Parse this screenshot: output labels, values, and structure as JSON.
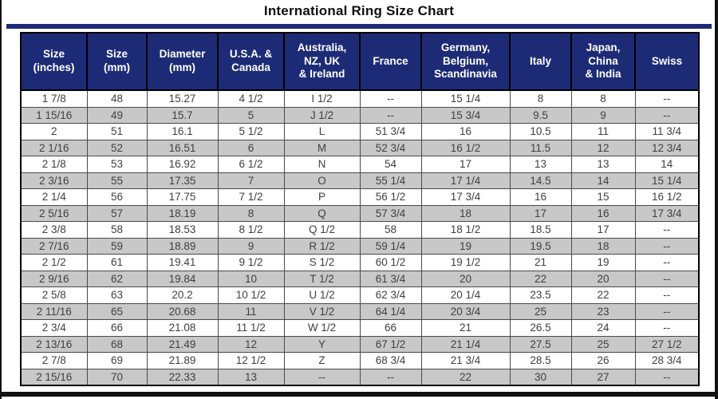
{
  "page": {
    "title": "International Ring Size Chart"
  },
  "colors": {
    "header_bg": "#1d2b76",
    "header_text": "#ffffff",
    "row_alt_bg": "#c8c8c8",
    "row_bg": "#ffffff",
    "cell_text": "#3f3f3f",
    "title_rule": "#1d2b76",
    "frame": "#121212"
  },
  "chart_data": {
    "type": "table",
    "title": "International Ring Size Chart",
    "columns": [
      "Size (inches)",
      "Size (mm)",
      "Diameter (mm)",
      "U.S.A. & Canada",
      "Australia, NZ, UK & Ireland",
      "France",
      "Germany, Belgium, Scandinavia",
      "Italy",
      "Japan, China & India",
      "Swiss"
    ],
    "header_display": [
      "Size\n(inches)",
      "Size\n(mm)",
      "Diameter\n(mm)",
      "U.S.A. &\nCanada",
      "Australia,\nNZ, UK\n& Ireland",
      "France",
      "Germany,\nBelgium,\nScandinavia",
      "Italy",
      "Japan,\nChina\n& India",
      "Swiss"
    ],
    "rows": [
      [
        "1 7/8",
        "48",
        "15.27",
        "4 1/2",
        "I 1/2",
        "--",
        "15 1/4",
        "8",
        "8",
        "--"
      ],
      [
        "1 15/16",
        "49",
        "15.7",
        "5",
        "J 1/2",
        "--",
        "15 3/4",
        "9.5",
        "9",
        "--"
      ],
      [
        "2",
        "51",
        "16.1",
        "5 1/2",
        "L",
        "51 3/4",
        "16",
        "10.5",
        "11",
        "11 3/4"
      ],
      [
        "2 1/16",
        "52",
        "16.51",
        "6",
        "M",
        "52 3/4",
        "16 1/2",
        "11.5",
        "12",
        "12 3/4"
      ],
      [
        "2 1/8",
        "53",
        "16.92",
        "6 1/2",
        "N",
        "54",
        "17",
        "13",
        "13",
        "14"
      ],
      [
        "2 3/16",
        "55",
        "17.35",
        "7",
        "O",
        "55 1/4",
        "17 1/4",
        "14.5",
        "14",
        "15 1/4"
      ],
      [
        "2 1/4",
        "56",
        "17.75",
        "7 1/2",
        "P",
        "56 1/2",
        "17 3/4",
        "16",
        "15",
        "16 1/2"
      ],
      [
        "2 5/16",
        "57",
        "18.19",
        "8",
        "Q",
        "57 3/4",
        "18",
        "17",
        "16",
        "17 3/4"
      ],
      [
        "2 3/8",
        "58",
        "18.53",
        "8 1/2",
        "Q 1/2",
        "58",
        "18 1/2",
        "18.5",
        "17",
        "--"
      ],
      [
        "2 7/16",
        "59",
        "18.89",
        "9",
        "R 1/2",
        "59 1/4",
        "19",
        "19.5",
        "18",
        "--"
      ],
      [
        "2 1/2",
        "61",
        "19.41",
        "9 1/2",
        "S 1/2",
        "60 1/2",
        "19 1/2",
        "21",
        "19",
        "--"
      ],
      [
        "2 9/16",
        "62",
        "19.84",
        "10",
        "T 1/2",
        "61 3/4",
        "20",
        "22",
        "20",
        "--"
      ],
      [
        "2 5/8",
        "63",
        "20.2",
        "10 1/2",
        "U 1/2",
        "62 3/4",
        "20 1/4",
        "23.5",
        "22",
        "--"
      ],
      [
        "2 11/16",
        "65",
        "20.68",
        "11",
        "V 1/2",
        "64 1/4",
        "20 3/4",
        "25",
        "23",
        "--"
      ],
      [
        "2 3/4",
        "66",
        "21.08",
        "11 1/2",
        "W 1/2",
        "66",
        "21",
        "26.5",
        "24",
        "--"
      ],
      [
        "2 13/16",
        "68",
        "21.49",
        "12",
        "Y",
        "67 1/2",
        "21 1/4",
        "27.5",
        "25",
        "27 1/2"
      ],
      [
        "2 7/8",
        "69",
        "21.89",
        "12 1/2",
        "Z",
        "68 3/4",
        "21 3/4",
        "28.5",
        "26",
        "28 3/4"
      ],
      [
        "2 15/16",
        "70",
        "22.33",
        "13",
        "--",
        "--",
        "22",
        "30",
        "27",
        "--"
      ]
    ]
  }
}
